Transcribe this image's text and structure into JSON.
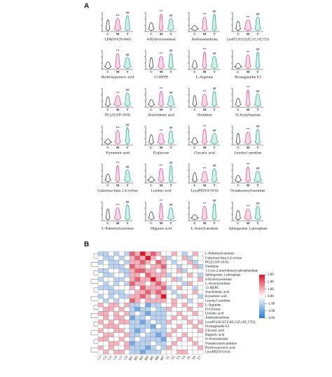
{
  "panel_a": {
    "label": "A",
    "groups": [
      "C",
      "M",
      "T"
    ],
    "significance": [
      "**",
      "##"
    ],
    "titles": [
      "LPA(0:0/20:4n6)",
      "4-Hydroxynonenal",
      "Androstenedione",
      "LysoPC(20:5(5Z,8Z,11Z,14Z,17Z))",
      "Hydroxypyruvic acid",
      "15-HEPE",
      "L-Arginine",
      "Prostaglandin E3",
      "PC(22:0/P-18:0)",
      "Arachidonic acid",
      "Ornithine",
      "N-Acetyltaurine",
      "Kynurenic acid",
      "D-glucose",
      "Glucaric acid",
      "Linoleyl carnitine",
      "Galactose-beta-1,4-xylose",
      "Linoleic acid",
      "LysoPE(0:0/16:0)",
      "Octadecenoylcarnitine",
      "L-Palmitoylcarnitine",
      "Hippuric acid",
      "L-Acetylcarnitine",
      "Sphingosine 1-phosphate"
    ]
  },
  "chart_data": {
    "type": "heatmap",
    "label": "B",
    "rows": [
      "L-Palmitoylcarnitine",
      "Galactose-beta-1,4-xylose",
      "PC(22:0/P-18:0)",
      "Ornithine",
      "1-Lyso-2-arachidonoyl-phosphatidate",
      "Sphingosine 1-phosphate",
      "4-Hydroxynonenal",
      "L-Acetylcarnitine",
      "15-HEPE",
      "Arachidonic acid",
      "Kynurenic acid",
      "Linoleyl carnitine",
      "L-Arginine",
      "D-Glucose",
      "Linoleic acid",
      "Androstenedione",
      "LysoPC(20:5(5Z,8Z,11Z,14Z,17Z))",
      "Prostaglandin E3",
      "Glucaric acid",
      "Hippuric acid",
      "N-Acetyltaurine",
      "Octadecenoylcarnitine",
      "Hydroxypyruvic acid",
      "LysoPE(0:0/16:0)"
    ],
    "columns": [
      "C1",
      "C2",
      "C3",
      "C4",
      "C5",
      "C6",
      "M1",
      "M2",
      "M3",
      "M4",
      "M5",
      "M6",
      "M7",
      "T1",
      "T2",
      "T3",
      "T4",
      "T5",
      "T6",
      "T7"
    ],
    "values": [
      [
        -1,
        -1,
        0,
        -1,
        0,
        -1,
        2,
        1,
        3,
        1,
        2,
        1,
        0,
        0,
        1,
        0,
        -1,
        0,
        1,
        0
      ],
      [
        0,
        -1,
        -1,
        0,
        -1,
        0,
        1,
        2,
        1,
        3,
        1,
        0,
        1,
        -1,
        0,
        0,
        1,
        -1,
        0,
        0
      ],
      [
        -1,
        0,
        -1,
        -1,
        0,
        -1,
        1,
        1,
        2,
        1,
        0,
        2,
        1,
        0,
        -1,
        0,
        0,
        1,
        -1,
        0
      ],
      [
        0,
        0,
        -1,
        -1,
        -1,
        0,
        2,
        1,
        1,
        0,
        1,
        1,
        2,
        0,
        0,
        -1,
        0,
        0,
        1,
        -1
      ],
      [
        -1,
        -1,
        0,
        0,
        -1,
        -1,
        1,
        2,
        2,
        1,
        1,
        0,
        1,
        0,
        0,
        1,
        -1,
        0,
        0,
        0
      ],
      [
        0,
        -1,
        -1,
        0,
        0,
        -1,
        1,
        1,
        0,
        2,
        1,
        1,
        1,
        -1,
        0,
        0,
        0,
        1,
        0,
        -1
      ],
      [
        -1,
        0,
        0,
        -1,
        -1,
        0,
        1,
        2,
        1,
        1,
        3,
        1,
        0,
        0,
        1,
        -1,
        0,
        0,
        0,
        1
      ],
      [
        0,
        -1,
        0,
        -1,
        0,
        -1,
        2,
        1,
        1,
        0,
        1,
        2,
        1,
        0,
        0,
        0,
        -1,
        1,
        0,
        0
      ],
      [
        -1,
        -1,
        -1,
        0,
        0,
        0,
        1,
        0,
        2,
        1,
        1,
        1,
        2,
        -1,
        0,
        1,
        0,
        0,
        -1,
        0
      ],
      [
        0,
        0,
        -1,
        -1,
        -1,
        0,
        0,
        1,
        1,
        2,
        1,
        2,
        1,
        0,
        -1,
        0,
        0,
        0,
        1,
        0
      ],
      [
        -1,
        0,
        -1,
        0,
        -1,
        -1,
        1,
        1,
        2,
        1,
        0,
        1,
        3,
        0,
        0,
        -1,
        1,
        0,
        0,
        -1
      ],
      [
        0,
        -1,
        0,
        -1,
        0,
        0,
        2,
        1,
        0,
        1,
        1,
        1,
        1,
        0,
        1,
        0,
        0,
        -1,
        0,
        0
      ],
      [
        1,
        0,
        1,
        1,
        0,
        1,
        -1,
        -1,
        0,
        -2,
        -1,
        -1,
        0,
        0,
        1,
        0,
        1,
        0,
        0,
        1
      ],
      [
        0,
        1,
        1,
        0,
        1,
        0,
        -1,
        -2,
        -1,
        -1,
        0,
        -1,
        -1,
        1,
        0,
        0,
        0,
        1,
        0,
        0
      ],
      [
        1,
        1,
        0,
        1,
        0,
        1,
        -1,
        0,
        -1,
        -2,
        -1,
        -1,
        -1,
        0,
        0,
        1,
        0,
        0,
        1,
        0
      ],
      [
        0,
        1,
        0,
        1,
        1,
        0,
        -2,
        -1,
        -1,
        0,
        -1,
        -1,
        -1,
        0,
        1,
        0,
        1,
        0,
        0,
        0
      ],
      [
        1,
        0,
        1,
        0,
        1,
        1,
        -1,
        -1,
        -2,
        -1,
        0,
        -1,
        -1,
        1,
        0,
        0,
        0,
        1,
        0,
        1
      ],
      [
        0,
        1,
        1,
        1,
        0,
        0,
        -1,
        -1,
        -1,
        -1,
        -2,
        0,
        -1,
        0,
        0,
        1,
        0,
        0,
        1,
        0
      ],
      [
        1,
        0,
        0,
        1,
        1,
        0,
        -1,
        -2,
        -1,
        0,
        -1,
        -1,
        -1,
        0,
        1,
        0,
        0,
        0,
        0,
        1
      ],
      [
        0,
        1,
        1,
        0,
        0,
        1,
        -1,
        -1,
        0,
        -1,
        -1,
        -2,
        -1,
        1,
        0,
        0,
        1,
        0,
        0,
        0
      ],
      [
        1,
        1,
        0,
        0,
        1,
        0,
        -1,
        0,
        -1,
        -1,
        -1,
        -1,
        -2,
        0,
        0,
        1,
        0,
        1,
        0,
        0
      ],
      [
        0,
        0,
        1,
        1,
        0,
        1,
        -2,
        -1,
        -1,
        -1,
        0,
        -1,
        -1,
        0,
        1,
        0,
        0,
        0,
        1,
        0
      ],
      [
        1,
        0,
        1,
        0,
        0,
        1,
        -1,
        -1,
        -1,
        -2,
        -1,
        0,
        -1,
        1,
        0,
        0,
        0,
        0,
        0,
        1
      ],
      [
        0,
        1,
        0,
        1,
        1,
        0,
        -1,
        -1,
        -2,
        -1,
        -1,
        -1,
        0,
        0,
        0,
        1,
        1,
        0,
        0,
        0
      ]
    ],
    "colorbar_ticks": [
      {
        "value": 3,
        "label": "3.00"
      },
      {
        "value": 2,
        "label": "2.00"
      },
      {
        "value": 1,
        "label": "1.00"
      },
      {
        "value": 0,
        "label": "0.00"
      },
      {
        "value": -1,
        "label": "-1.00"
      },
      {
        "value": -2,
        "label": "-2.00"
      },
      {
        "value": -3,
        "label": "-3.00"
      }
    ]
  }
}
